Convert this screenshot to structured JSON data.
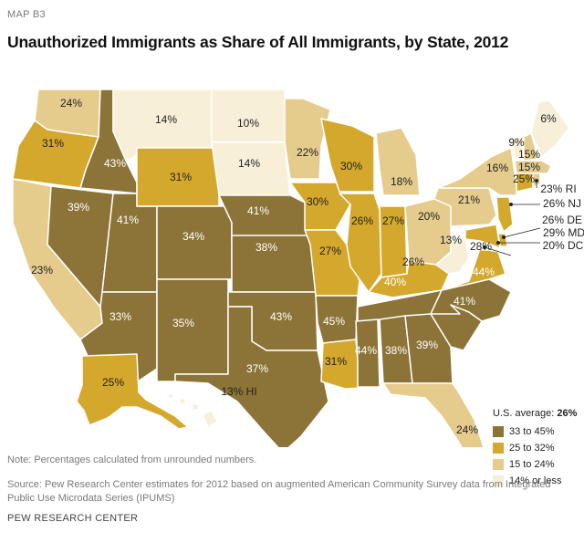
{
  "map_id": "MAP B3",
  "title": "Unauthorized Immigrants as Share of All Immigrants, by State, 2012",
  "colors": {
    "c1": "#8c7438",
    "c2": "#d4a82c",
    "c3": "#e5cb8c",
    "c4": "#f7efd8"
  },
  "legend": {
    "avg_label": "U.S. average:",
    "avg_value": "26%",
    "items": [
      {
        "label": "33 to 45%",
        "cls": "c1"
      },
      {
        "label": "25 to 32%",
        "cls": "c2"
      },
      {
        "label": "15 to 24%",
        "cls": "c3"
      },
      {
        "label": "14% or less",
        "cls": "c4"
      }
    ]
  },
  "states": [
    {
      "abbr": "WA",
      "value": "24%",
      "cls": "c3"
    },
    {
      "abbr": "OR",
      "value": "31%",
      "cls": "c2"
    },
    {
      "abbr": "CA",
      "value": "23%",
      "cls": "c3"
    },
    {
      "abbr": "ID",
      "value": "43%",
      "cls": "c1"
    },
    {
      "abbr": "NV",
      "value": "39%",
      "cls": "c1"
    },
    {
      "abbr": "AZ",
      "value": "33%",
      "cls": "c1"
    },
    {
      "abbr": "UT",
      "value": "41%",
      "cls": "c1"
    },
    {
      "abbr": "MT",
      "value": "14%",
      "cls": "c4"
    },
    {
      "abbr": "WY",
      "value": "31%",
      "cls": "c2"
    },
    {
      "abbr": "CO",
      "value": "34%",
      "cls": "c1"
    },
    {
      "abbr": "NM",
      "value": "35%",
      "cls": "c1"
    },
    {
      "abbr": "ND",
      "value": "10%",
      "cls": "c4"
    },
    {
      "abbr": "SD",
      "value": "14%",
      "cls": "c4"
    },
    {
      "abbr": "NE",
      "value": "41%",
      "cls": "c1"
    },
    {
      "abbr": "KS",
      "value": "38%",
      "cls": "c1"
    },
    {
      "abbr": "OK",
      "value": "43%",
      "cls": "c1"
    },
    {
      "abbr": "TX",
      "value": "37%",
      "cls": "c1"
    },
    {
      "abbr": "MN",
      "value": "22%",
      "cls": "c3"
    },
    {
      "abbr": "IA",
      "value": "30%",
      "cls": "c2"
    },
    {
      "abbr": "MO",
      "value": "27%",
      "cls": "c2"
    },
    {
      "abbr": "AR",
      "value": "45%",
      "cls": "c1"
    },
    {
      "abbr": "LA",
      "value": "31%",
      "cls": "c2"
    },
    {
      "abbr": "WI",
      "value": "30%",
      "cls": "c2"
    },
    {
      "abbr": "IL",
      "value": "26%",
      "cls": "c2"
    },
    {
      "abbr": "MI",
      "value": "18%",
      "cls": "c3"
    },
    {
      "abbr": "IN",
      "value": "27%",
      "cls": "c2"
    },
    {
      "abbr": "OH",
      "value": "20%",
      "cls": "c3"
    },
    {
      "abbr": "KY",
      "value": "26%",
      "cls": "c2"
    },
    {
      "abbr": "TN",
      "value": "40%",
      "cls": "c1"
    },
    {
      "abbr": "MS",
      "value": "44%",
      "cls": "c1"
    },
    {
      "abbr": "AL",
      "value": "38%",
      "cls": "c1"
    },
    {
      "abbr": "GA",
      "value": "39%",
      "cls": "c1"
    },
    {
      "abbr": "FL",
      "value": "24%",
      "cls": "c3"
    },
    {
      "abbr": "SC",
      "value": "41%",
      "cls": "c1"
    },
    {
      "abbr": "NC",
      "value": "44%",
      "cls": "c1"
    },
    {
      "abbr": "VA",
      "value": "28%",
      "cls": "c2"
    },
    {
      "abbr": "WV",
      "value": "13%",
      "cls": "c4"
    },
    {
      "abbr": "PA",
      "value": "21%",
      "cls": "c3"
    },
    {
      "abbr": "NY",
      "value": "16%",
      "cls": "c3"
    },
    {
      "abbr": "VT",
      "value": "9%",
      "cls": "c4"
    },
    {
      "abbr": "NH",
      "value": "15%",
      "cls": "c3"
    },
    {
      "abbr": "ME",
      "value": "6%",
      "cls": "c4"
    },
    {
      "abbr": "MA",
      "value": "15%",
      "cls": "c3"
    },
    {
      "abbr": "CT",
      "value": "25%",
      "cls": "c2"
    },
    {
      "abbr": "RI",
      "value": "23% RI",
      "cls": "c3"
    },
    {
      "abbr": "NJ",
      "value": "26% NJ",
      "cls": "c2"
    },
    {
      "abbr": "DE",
      "value": "26% DE",
      "cls": "c2"
    },
    {
      "abbr": "MD",
      "value": "29% MD",
      "cls": "c2"
    },
    {
      "abbr": "DC",
      "value": "20% DC",
      "cls": "c3"
    },
    {
      "abbr": "AK",
      "value": "25%",
      "cls": "c2"
    },
    {
      "abbr": "HI",
      "value": "13% HI",
      "cls": "c4"
    }
  ],
  "note": "Note: Percentages calculated from unrounded numbers.",
  "source": "Source: Pew Research Center estimates for 2012 based on augmented American Community Survey data from Integrated Public Use Microdata Series (IPUMS)",
  "credit": "PEW RESEARCH CENTER"
}
